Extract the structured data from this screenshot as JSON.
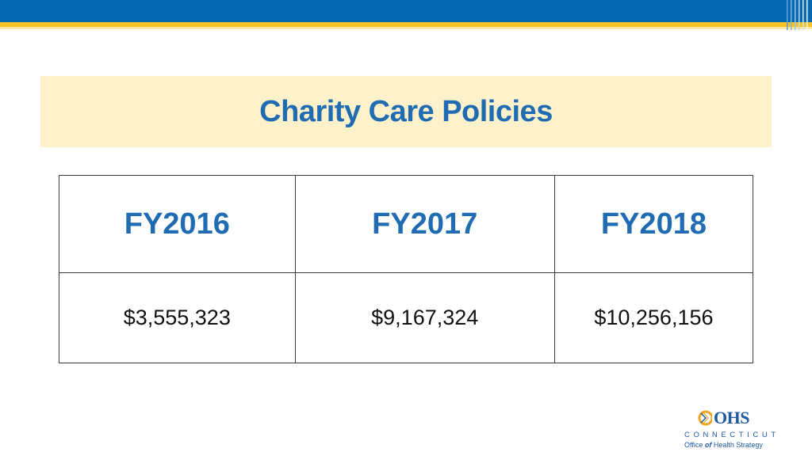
{
  "slide": {
    "title": "Charity Care Policies"
  },
  "table": {
    "headers": [
      "FY2016",
      "FY2017",
      "FY2018"
    ],
    "rows": [
      [
        "$3,555,323",
        "$9,167,324",
        "$10,256,156"
      ]
    ]
  },
  "logo": {
    "name": "OHS",
    "state": "CONNECTICUT",
    "org_prefix": "Office",
    "org_of": "of",
    "org_suffix": "Health Strategy"
  },
  "colors": {
    "header_band": "#0568b0",
    "gold_stripe": "#f7c325",
    "title_box": "#fdf1cc",
    "title_text": "#1f6cb3"
  }
}
